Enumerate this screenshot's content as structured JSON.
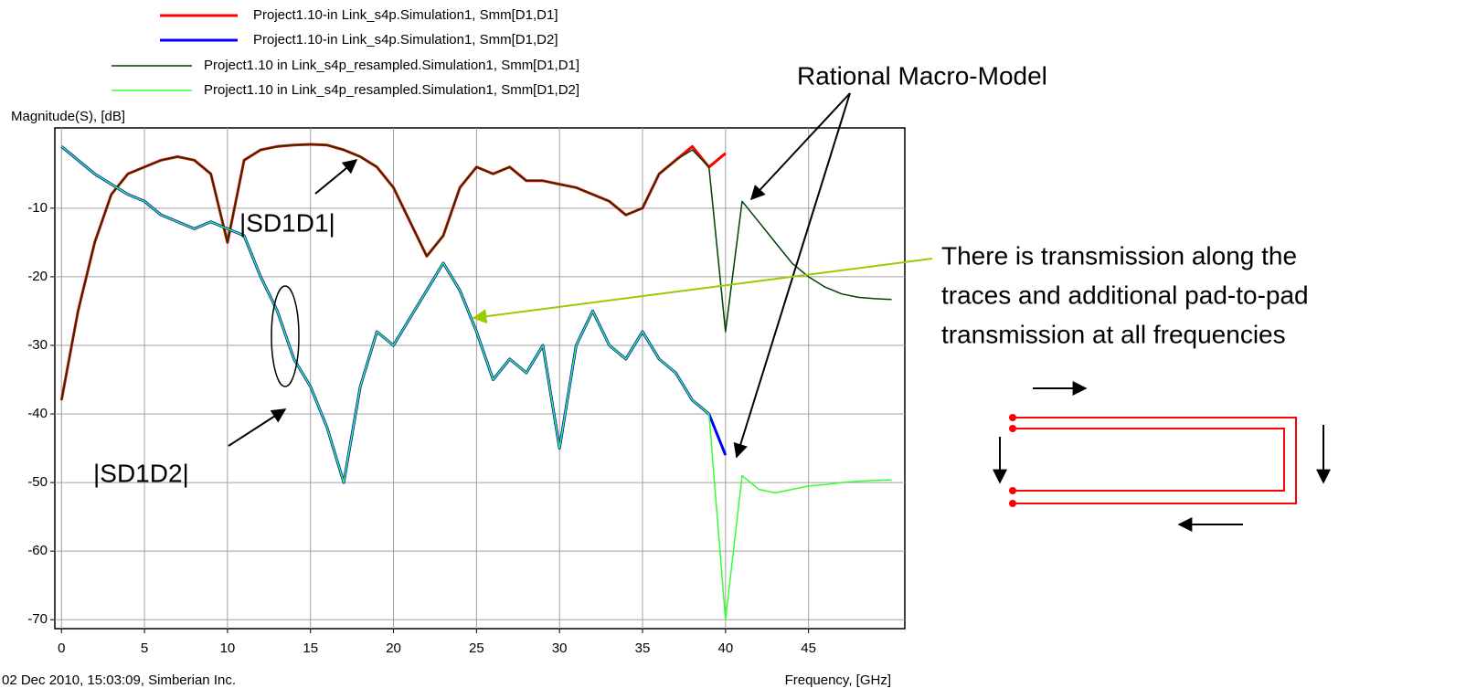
{
  "chart_data": {
    "type": "line",
    "y_label": "Magnitude(S), [dB]",
    "x_label": "Frequency, [GHz]",
    "footer": "02 Dec 2010, 15:03:09, Simberian Inc.",
    "annotations": {
      "macro_model": "Rational Macro-Model",
      "transmission": [
        "There is transmission along the",
        "traces and additional pad-to-pad",
        "transmission at all frequencies"
      ],
      "sd1d1": "|SD1D1|",
      "sd1d2": "|SD1D2|"
    },
    "x": [
      0,
      1,
      2,
      3,
      4,
      5,
      6,
      7,
      8,
      9,
      10,
      11,
      12,
      13,
      14,
      15,
      16,
      17,
      18,
      19,
      20,
      21,
      22,
      23,
      24,
      25,
      26,
      27,
      28,
      29,
      30,
      31,
      32,
      33,
      34,
      35,
      36,
      37,
      38,
      39,
      40,
      41,
      42,
      43,
      44,
      45,
      46,
      47,
      48,
      49,
      50
    ],
    "xlim": [
      -0.4,
      50.8
    ],
    "xticks": [
      0,
      5,
      10,
      15,
      20,
      25,
      30,
      35,
      40,
      45
    ],
    "ylim": [
      -71.3,
      1.7
    ],
    "yticks": [
      -10,
      -20,
      -30,
      -40,
      -50,
      -60,
      -70
    ],
    "grid": true,
    "series": [
      {
        "name": "Project1.10-in Link_s4p.Simulation1, Smm[D1,D1]",
        "color": "#ff0000",
        "width": 3,
        "values": [
          -38,
          -25,
          -15,
          -8,
          -5,
          -4,
          -3,
          -2.5,
          -3,
          -5,
          -15,
          -3,
          -1.5,
          -1,
          -0.8,
          -0.7,
          -0.8,
          -1.5,
          -2.5,
          -4,
          -7,
          -12,
          -17,
          -14,
          -7,
          -4,
          -5,
          -4,
          -6,
          -6,
          -6.5,
          -7,
          -8,
          -9,
          -11,
          -10,
          -5,
          -3,
          -1,
          -4,
          -2,
          null,
          null,
          null,
          null,
          null,
          null,
          null,
          null,
          null,
          null
        ]
      },
      {
        "name": "Project1.10-in Link_s4p.Simulation1, Smm[D1,D2]",
        "color": "#0000ff",
        "width": 3,
        "values": [
          -1,
          -3,
          -5,
          -6.5,
          -8,
          -9,
          -11,
          -12,
          -13,
          -12,
          -13,
          -14,
          -20,
          -25,
          -32,
          -36,
          -42,
          -50,
          -36,
          -28,
          -30,
          -26,
          -22,
          -18,
          -22,
          -28,
          -35,
          -32,
          -34,
          -30,
          -45,
          -30,
          -25,
          -30,
          -32,
          -28,
          -32,
          -34,
          -38,
          -40,
          -46,
          null,
          null,
          null,
          null,
          null,
          null,
          null,
          null,
          null,
          null
        ]
      },
      {
        "name": "Project1.10 in Link_s4p_resampled.Simulation1, Smm[D1,D1]",
        "color": "#004000",
        "width": 1.5,
        "values": [
          -38,
          -25,
          -15,
          -8,
          -5,
          -4,
          -3,
          -2.5,
          -3,
          -5,
          -15,
          -3,
          -1.5,
          -1,
          -0.8,
          -0.7,
          -0.8,
          -1.5,
          -2.5,
          -4,
          -7,
          -12,
          -17,
          -14,
          -7,
          -4,
          -5,
          -4,
          -6,
          -6,
          -6.5,
          -7,
          -8,
          -9,
          -11,
          -10,
          -5,
          -3,
          -1.5,
          -4,
          -28,
          -9,
          -12,
          -15,
          -18,
          -20,
          -21.5,
          -22.5,
          -23,
          -23.2,
          -23.3
        ]
      },
      {
        "name": "Project1.10 in Link_s4p_resampled.Simulation1, Smm[D1,D2]",
        "color": "#33ff33",
        "width": 1.5,
        "values": [
          -1,
          -3,
          -5,
          -6.5,
          -8,
          -9,
          -11,
          -12,
          -13,
          -12,
          -13,
          -14,
          -20,
          -25,
          -32,
          -36,
          -42,
          -50,
          -36,
          -28,
          -30,
          -26,
          -22,
          -18,
          -22,
          -28,
          -35,
          -32,
          -34,
          -30,
          -45,
          -30,
          -25,
          -30,
          -32,
          -28,
          -32,
          -34,
          -38,
          -40,
          -70,
          -49,
          -51,
          -51.5,
          -51,
          -50.5,
          -50.3,
          -50,
          -49.8,
          -49.7,
          -49.6
        ]
      }
    ]
  }
}
